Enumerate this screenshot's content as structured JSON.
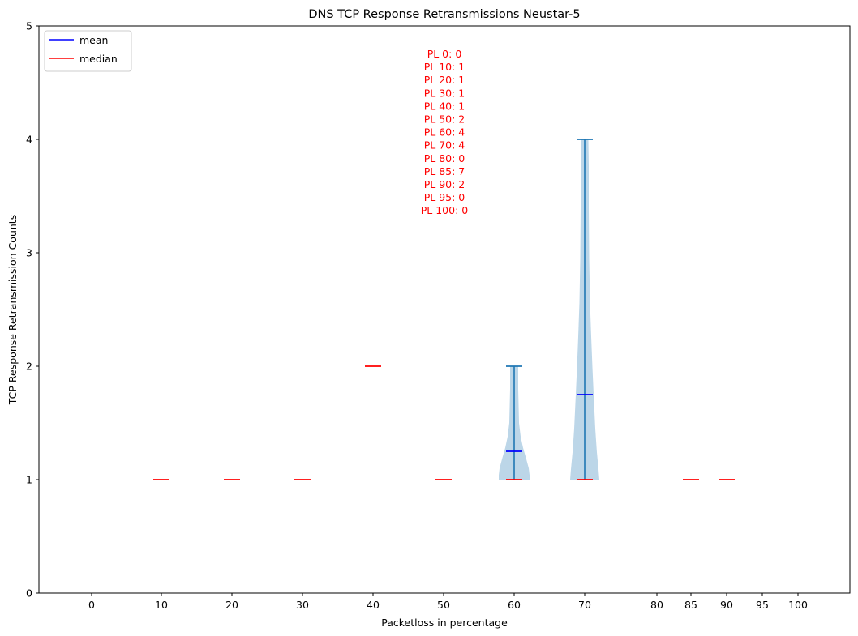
{
  "chart_data": {
    "type": "violin",
    "title": "DNS TCP Response Retransmissions Neustar-5",
    "xlabel": "Packetloss in percentage",
    "ylabel": "TCP Response Retransmission Counts",
    "ylim": [
      0,
      5
    ],
    "y_ticks": [
      0,
      1,
      2,
      3,
      4,
      5
    ],
    "x_ticks": [
      0,
      10,
      20,
      30,
      40,
      50,
      60,
      70,
      80,
      85,
      90,
      95,
      100
    ],
    "grid": false,
    "legend": {
      "position": "top-left",
      "entries": [
        {
          "label": "mean",
          "color": "#0000ff"
        },
        {
          "label": "median",
          "color": "#ff0000"
        }
      ]
    },
    "medians": [
      {
        "x": 10,
        "value": 1
      },
      {
        "x": 20,
        "value": 1
      },
      {
        "x": 30,
        "value": 1
      },
      {
        "x": 40,
        "value": 2
      },
      {
        "x": 50,
        "value": 1
      },
      {
        "x": 60,
        "value": 1
      },
      {
        "x": 70,
        "value": 1
      },
      {
        "x": 85,
        "value": 1
      },
      {
        "x": 90,
        "value": 1
      }
    ],
    "violins": [
      {
        "x": 60,
        "min": 1,
        "max": 2,
        "mean": 1.25,
        "median": 1
      },
      {
        "x": 70,
        "min": 1,
        "max": 4,
        "mean": 1.75,
        "median": 1
      }
    ],
    "annotation": [
      "PL 0: 0",
      "PL 10: 1",
      "PL 20: 1",
      "PL 30: 1",
      "PL 40: 1",
      "PL 50: 2",
      "PL 60: 4",
      "PL 70: 4",
      "PL 80: 0",
      "PL 85: 7",
      "PL 90: 2",
      "PL 95: 0",
      "PL 100: 0"
    ],
    "colors": {
      "violin_body": "#bcd6e8",
      "violin_line": "#1f77b4",
      "mean": "#0000ff",
      "median": "#ff0000",
      "annotation": "#ff0000"
    }
  }
}
